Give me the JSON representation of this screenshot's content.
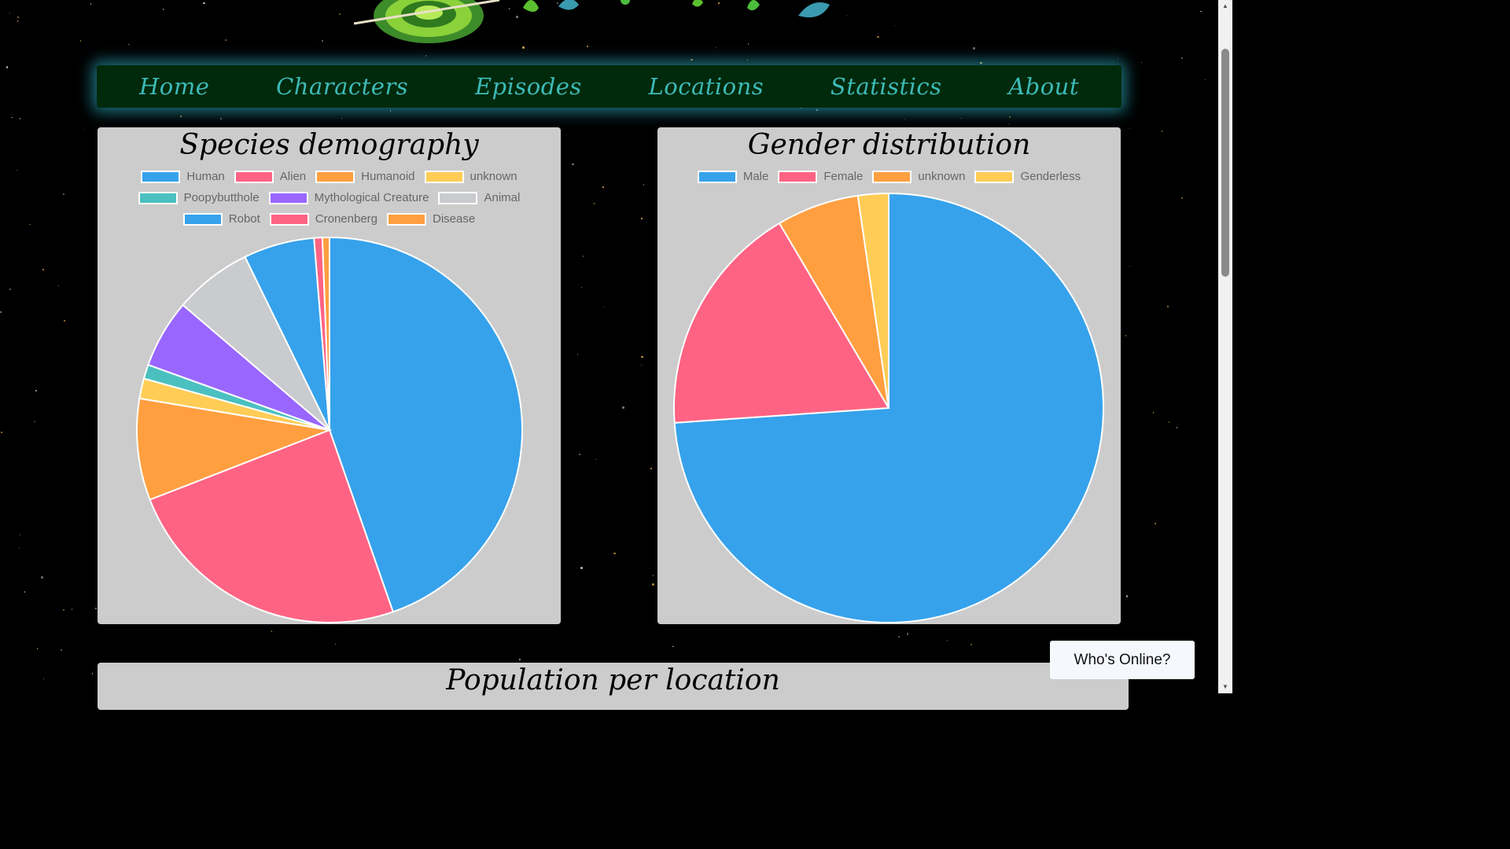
{
  "nav": {
    "items": [
      {
        "label": "Home"
      },
      {
        "label": "Characters"
      },
      {
        "label": "Episodes"
      },
      {
        "label": "Locations"
      },
      {
        "label": "Statistics"
      },
      {
        "label": "About"
      }
    ]
  },
  "whos_online": {
    "label": "Who's Online?"
  },
  "population_card": {
    "title": "Population per location"
  },
  "chart_data": [
    {
      "type": "pie",
      "title": "Species demography",
      "legend_placement": "top",
      "categories": [
        "Human",
        "Alien",
        "Humanoid",
        "unknown",
        "Poopybutthole",
        "Mythological Creature",
        "Animal",
        "Robot",
        "Cronenberg",
        "Disease"
      ],
      "values": [
        45.1,
        24.7,
        8.6,
        1.7,
        1.2,
        5.8,
        6.6,
        6.0,
        0.7,
        0.6
      ],
      "colors": [
        "#36a2eb",
        "#ff6384",
        "#ff9f40",
        "#ffcd56",
        "#4bc0c0",
        "#9966ff",
        "#c9cbcf",
        "#36a2eb",
        "#ff6384",
        "#ff9f40"
      ]
    },
    {
      "type": "pie",
      "title": "Gender distribution",
      "legend_placement": "top",
      "categories": [
        "Male",
        "Female",
        "unknown",
        "Genderless"
      ],
      "values": [
        73.9,
        17.6,
        6.2,
        2.3
      ],
      "colors": [
        "#36a2eb",
        "#ff6384",
        "#ff9f40",
        "#ffcd56"
      ]
    }
  ]
}
